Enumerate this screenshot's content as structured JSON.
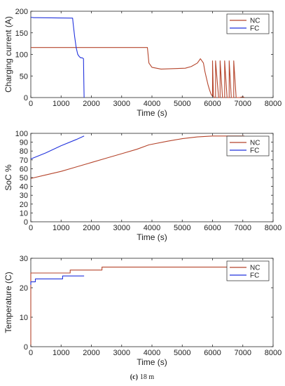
{
  "figure": {
    "caption_label": "(c)",
    "caption_text": "18 m"
  },
  "colors": {
    "NC": "#b5452c",
    "FC": "#2233dd"
  },
  "chart_data": [
    {
      "type": "line",
      "xlabel": "Time (s)",
      "ylabel": "Charging current (A)",
      "xlim": [
        0,
        8000
      ],
      "ylim": [
        0,
        200
      ],
      "xticks": [
        0,
        1000,
        2000,
        3000,
        4000,
        5000,
        6000,
        7000,
        8000
      ],
      "yticks": [
        0,
        50,
        100,
        150,
        200
      ],
      "grid": false,
      "legend": "top-right",
      "series": [
        {
          "name": "NC",
          "x": [
            0,
            3850,
            3850,
            3900,
            4000,
            4300,
            4700,
            5100,
            5300,
            5500,
            5600,
            5700,
            5750,
            5800,
            5850,
            5900,
            5950,
            6000,
            6000,
            6030,
            6060,
            6100,
            6100,
            6200,
            6250,
            6250,
            6330,
            6400,
            6400,
            6480,
            6550,
            6550,
            6620,
            6700,
            6700,
            6780,
            6850,
            6900,
            7000,
            7050
          ],
          "y": [
            116,
            116,
            116,
            80,
            70,
            66,
            67,
            68,
            72,
            80,
            90,
            80,
            60,
            45,
            30,
            18,
            8,
            3,
            85,
            3,
            0,
            0,
            85,
            0,
            0,
            85,
            0,
            0,
            85,
            0,
            0,
            85,
            0,
            0,
            85,
            0,
            0,
            0,
            2,
            0
          ]
        },
        {
          "name": "FC",
          "x": [
            0,
            100,
            200,
            1380,
            1400,
            1450,
            1500,
            1550,
            1600,
            1650,
            1700,
            1740,
            1750,
            1760
          ],
          "y": [
            186,
            185,
            185,
            184,
            170,
            140,
            115,
            100,
            95,
            92,
            92,
            90,
            40,
            0
          ]
        }
      ]
    },
    {
      "type": "line",
      "xlabel": "Time (s)",
      "ylabel": "SoC %",
      "xlim": [
        0,
        8000
      ],
      "ylim": [
        0,
        100
      ],
      "xticks": [
        0,
        1000,
        2000,
        3000,
        4000,
        5000,
        6000,
        7000,
        8000
      ],
      "yticks": [
        0,
        10,
        20,
        30,
        40,
        50,
        60,
        70,
        80,
        90,
        100
      ],
      "grid": false,
      "legend": "top-right",
      "series": [
        {
          "name": "NC",
          "x": [
            0,
            500,
            1000,
            1500,
            2000,
            2500,
            3000,
            3500,
            3900,
            4500,
            5000,
            5500,
            6000,
            7050
          ],
          "y": [
            49,
            53,
            57,
            62,
            67,
            72,
            77,
            82,
            87,
            91,
            94,
            96,
            97,
            97
          ]
        },
        {
          "name": "FC",
          "x": [
            0,
            500,
            1000,
            1500,
            1760
          ],
          "y": [
            71,
            78,
            86,
            93,
            97
          ]
        }
      ]
    },
    {
      "type": "line",
      "xlabel": "Time (s)",
      "ylabel": "Temperature (C)",
      "xlim": [
        0,
        8000
      ],
      "ylim": [
        0,
        30
      ],
      "xticks": [
        0,
        1000,
        2000,
        3000,
        4000,
        5000,
        6000,
        7000,
        8000
      ],
      "yticks": [
        0,
        10,
        20,
        30
      ],
      "grid": false,
      "legend": "top-right",
      "series": [
        {
          "name": "NC",
          "x": [
            0,
            0,
            1300,
            1300,
            2350,
            2350,
            7050
          ],
          "y": [
            0,
            25,
            25,
            26,
            26,
            27,
            27
          ]
        },
        {
          "name": "FC",
          "x": [
            0,
            0,
            150,
            150,
            1050,
            1050,
            1760
          ],
          "y": [
            21,
            22,
            22,
            23,
            23,
            24,
            24
          ]
        }
      ]
    }
  ]
}
